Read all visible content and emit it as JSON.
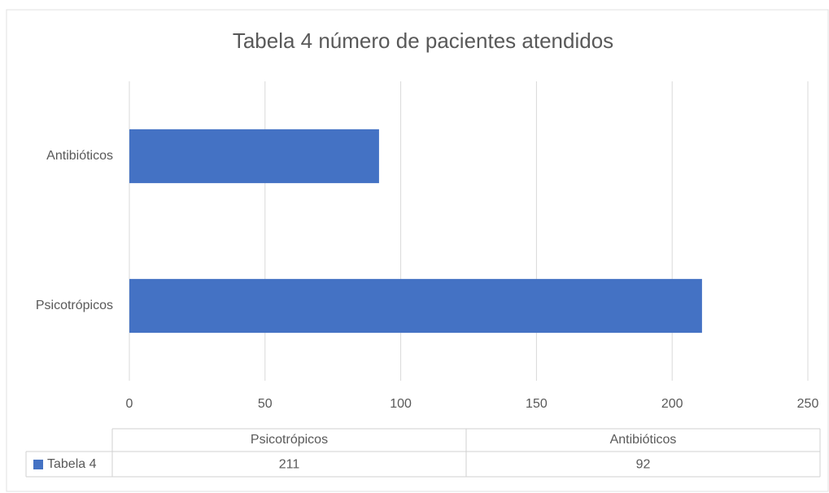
{
  "chart_data": {
    "type": "bar",
    "orientation": "horizontal",
    "title": "Tabela 4 número de pacientes atendidos",
    "categories": [
      "Psicotrópicos",
      "Antibióticos"
    ],
    "series": [
      {
        "name": "Tabela 4",
        "color": "#4472c4",
        "values": [
          211,
          92
        ]
      }
    ],
    "xlim": [
      0,
      250
    ],
    "xticks": [
      0,
      50,
      100,
      150,
      200,
      250
    ],
    "grid": true,
    "data_table": true
  }
}
